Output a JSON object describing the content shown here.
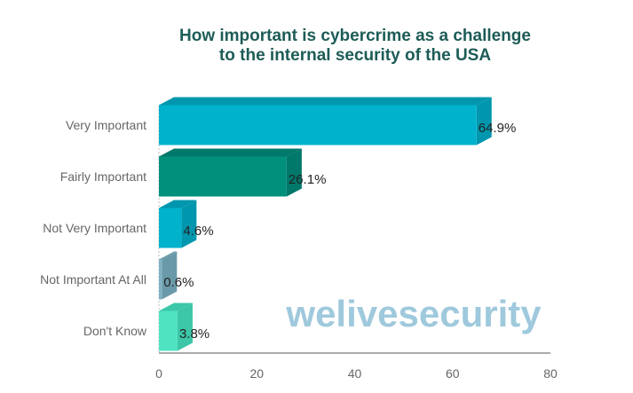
{
  "chart_data": {
    "type": "bar",
    "orientation": "horizontal",
    "title_lines": [
      "How important is cybercrime as a challenge",
      "to the internal security of the USA"
    ],
    "categories": [
      "Very Important",
      "Fairly Important",
      "Not Very Important",
      "Not Important At All",
      "Don't Know"
    ],
    "values": [
      64.9,
      26.1,
      4.6,
      0.6,
      3.8
    ],
    "value_labels": [
      "64.9%",
      "26.1%",
      "4.6%",
      "0.6%",
      "3.8%"
    ],
    "bar_colors": [
      "#00b2cc",
      "#00907c",
      "#00b2cc",
      "#7fb2c2",
      "#50e3c2"
    ],
    "bar_top_colors": [
      "#0097ae",
      "#00786a",
      "#0097ae",
      "#6a9aa9",
      "#3cc7a8"
    ],
    "xlim": [
      0,
      80
    ],
    "x_ticks": [
      0,
      20,
      40,
      60,
      80
    ],
    "grid": false,
    "xlabel": "",
    "ylabel": ""
  },
  "watermark": {
    "text": "welivesecurity",
    "color": "#9fc9dc"
  }
}
